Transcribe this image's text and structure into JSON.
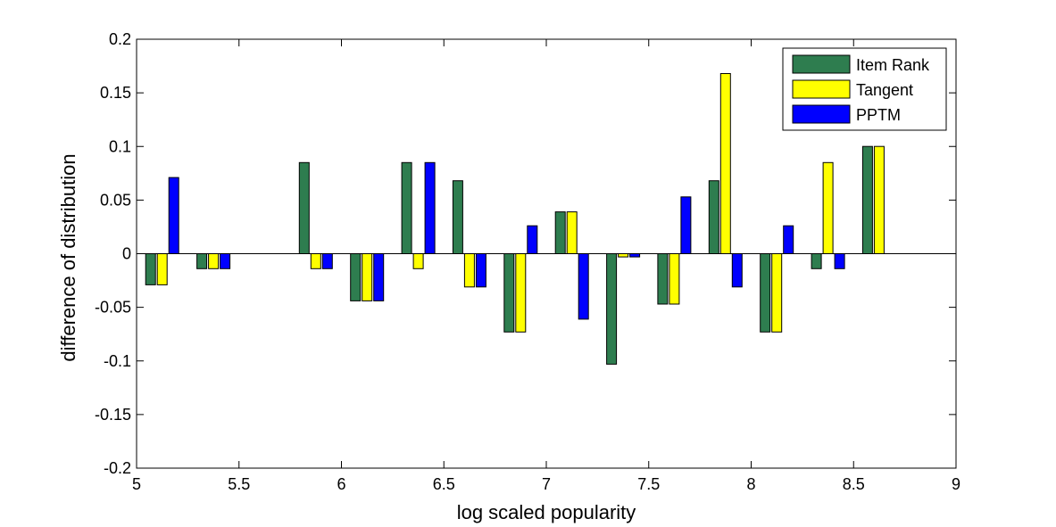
{
  "chart_data": {
    "type": "bar",
    "xlabel": "log scaled popularity",
    "ylabel": "difference of distribution",
    "xlim": [
      5,
      9
    ],
    "ylim": [
      -0.2,
      0.2
    ],
    "x_ticks": [
      "5",
      "5.5",
      "6",
      "6.5",
      "7",
      "7.5",
      "8",
      "8.5",
      "9"
    ],
    "y_ticks": [
      "0.2",
      "0.15",
      "0.1",
      "0.05",
      "0",
      "-0.05",
      "-0.1",
      "-0.15",
      "-0.2"
    ],
    "legend_position": "top-right",
    "x": [
      5.125,
      5.375,
      5.625,
      5.875,
      6.125,
      6.375,
      6.625,
      6.875,
      7.125,
      7.375,
      7.625,
      7.875,
      8.125,
      8.375,
      8.625
    ],
    "series": [
      {
        "name": "Item Rank",
        "color": "#2e7d4f",
        "values": [
          -0.029,
          -0.014,
          0,
          0.085,
          -0.044,
          0.085,
          0.068,
          -0.073,
          0.039,
          -0.103,
          -0.047,
          0.068,
          -0.073,
          -0.014,
          0.1
        ]
      },
      {
        "name": "Tangent",
        "color": "#ffff00",
        "values": [
          -0.029,
          -0.014,
          0,
          -0.014,
          -0.044,
          -0.014,
          -0.031,
          -0.073,
          0.039,
          -0.003,
          -0.047,
          0.168,
          -0.073,
          0.085,
          0.1
        ]
      },
      {
        "name": "PPTM",
        "color": "#0000ff",
        "values": [
          0.071,
          -0.014,
          0,
          -0.014,
          -0.044,
          0.085,
          -0.031,
          0.026,
          -0.061,
          -0.003,
          0.053,
          -0.031,
          0.026,
          -0.014,
          0
        ]
      }
    ]
  }
}
